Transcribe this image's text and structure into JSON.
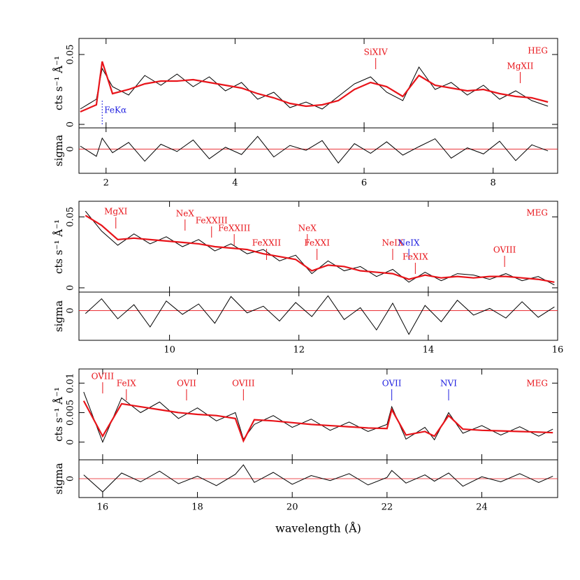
{
  "chart_data": [
    {
      "type": "line",
      "panel_label": "HEG",
      "ylabel": "cts s⁻¹ Å⁻¹",
      "xlim": [
        1.58,
        9.0
      ],
      "xticks": [
        2,
        4,
        6,
        8
      ],
      "ylim": [
        -0.0025,
        0.0615
      ],
      "yticks": [
        0,
        0.05
      ],
      "x": [
        1.6,
        1.85,
        1.94,
        2.1,
        2.35,
        2.6,
        2.85,
        3.1,
        3.35,
        3.6,
        3.85,
        4.1,
        4.35,
        4.6,
        4.85,
        5.1,
        5.35,
        5.6,
        5.85,
        6.1,
        6.35,
        6.6,
        6.85,
        7.1,
        7.35,
        7.6,
        7.85,
        8.1,
        8.35,
        8.6,
        8.85
      ],
      "series": [
        {
          "color": "#000000",
          "values": [
            0.011,
            0.018,
            0.04,
            0.027,
            0.021,
            0.035,
            0.028,
            0.036,
            0.027,
            0.034,
            0.024,
            0.03,
            0.018,
            0.023,
            0.012,
            0.016,
            0.011,
            0.02,
            0.029,
            0.034,
            0.023,
            0.017,
            0.041,
            0.025,
            0.03,
            0.021,
            0.028,
            0.018,
            0.024,
            0.017,
            0.013
          ]
        },
        {
          "color": "#e8141a",
          "values": [
            0.009,
            0.014,
            0.045,
            0.022,
            0.025,
            0.029,
            0.031,
            0.031,
            0.032,
            0.03,
            0.028,
            0.026,
            0.022,
            0.019,
            0.015,
            0.013,
            0.014,
            0.017,
            0.025,
            0.03,
            0.027,
            0.02,
            0.035,
            0.028,
            0.026,
            0.024,
            0.025,
            0.022,
            0.02,
            0.019,
            0.016
          ]
        }
      ],
      "annotations": [
        {
          "label": "SiXIV",
          "x": 6.18,
          "color": "#e8141a"
        },
        {
          "label": "MgXII",
          "x": 8.42,
          "color": "#e8141a"
        },
        {
          "label": "FeKα",
          "x": 1.94,
          "color": "#2020e0"
        }
      ],
      "residuals": {
        "ylabel": "sigma",
        "ylim": [
          -4,
          3.5
        ],
        "yticks": [
          0
        ],
        "values": [
          0.5,
          -1.2,
          1.8,
          -0.6,
          1.1,
          -2.0,
          0.8,
          -0.4,
          1.5,
          -1.6,
          0.3,
          -0.9,
          2.1,
          -1.3,
          0.6,
          -0.2,
          1.4,
          -2.3,
          0.9,
          -0.7,
          1.2,
          -1.0,
          0.4,
          1.7,
          -1.5,
          0.2,
          -0.8,
          1.3,
          -1.9,
          0.7,
          -0.3
        ]
      }
    },
    {
      "type": "line",
      "panel_label": "MEG",
      "ylabel": "cts s⁻¹ Å⁻¹",
      "xlim": [
        8.6,
        16
      ],
      "xticks": [
        10,
        12,
        14,
        16
      ],
      "ylim": [
        -0.003,
        0.061
      ],
      "yticks": [
        0,
        0.05
      ],
      "x": [
        8.7,
        8.95,
        9.2,
        9.45,
        9.7,
        9.95,
        10.2,
        10.45,
        10.7,
        10.95,
        11.2,
        11.45,
        11.7,
        11.95,
        12.2,
        12.45,
        12.7,
        12.95,
        13.2,
        13.45,
        13.7,
        13.95,
        14.2,
        14.45,
        14.7,
        14.95,
        15.2,
        15.45,
        15.7,
        15.95
      ],
      "series": [
        {
          "color": "#000000",
          "values": [
            0.054,
            0.04,
            0.03,
            0.038,
            0.031,
            0.036,
            0.029,
            0.034,
            0.026,
            0.031,
            0.024,
            0.027,
            0.019,
            0.023,
            0.01,
            0.019,
            0.012,
            0.015,
            0.008,
            0.013,
            0.004,
            0.011,
            0.005,
            0.01,
            0.009,
            0.006,
            0.01,
            0.005,
            0.008,
            0.002
          ]
        },
        {
          "color": "#e8141a",
          "values": [
            0.051,
            0.044,
            0.034,
            0.035,
            0.034,
            0.033,
            0.032,
            0.031,
            0.029,
            0.028,
            0.027,
            0.024,
            0.022,
            0.02,
            0.012,
            0.016,
            0.015,
            0.012,
            0.011,
            0.01,
            0.006,
            0.009,
            0.007,
            0.008,
            0.007,
            0.008,
            0.008,
            0.007,
            0.006,
            0.004
          ]
        }
      ],
      "annotations": [
        {
          "label": "MgXI",
          "x": 9.17,
          "color": "#e8141a"
        },
        {
          "label": "NeX",
          "x": 10.24,
          "color": "#e8141a"
        },
        {
          "label": "FeXXIII",
          "x": 10.65,
          "color": "#e8141a"
        },
        {
          "label": "FeXXIII",
          "x": 11.0,
          "color": "#e8141a"
        },
        {
          "label": "FeXXII",
          "x": 11.5,
          "color": "#e8141a"
        },
        {
          "label": "NeX",
          "x": 12.13,
          "color": "#e8141a"
        },
        {
          "label": "FeXXI",
          "x": 12.28,
          "color": "#e8141a"
        },
        {
          "label": "NeIX",
          "x": 13.45,
          "color": "#e8141a"
        },
        {
          "label": "NeIX",
          "x": 13.7,
          "color": "#2020e0"
        },
        {
          "label": "FeXIX",
          "x": 13.8,
          "color": "#e8141a"
        },
        {
          "label": "OVIII",
          "x": 15.18,
          "color": "#e8141a"
        }
      ],
      "residuals": {
        "ylabel": "sigma",
        "ylim": [
          -4,
          2.5
        ],
        "yticks": [
          0
        ],
        "values": [
          -0.4,
          1.6,
          -1.1,
          0.8,
          -2.2,
          1.3,
          -0.5,
          0.9,
          -1.7,
          1.9,
          -0.3,
          0.6,
          -1.4,
          1.1,
          -0.8,
          2.0,
          -1.2,
          0.4,
          -2.6,
          1.0,
          -3.2,
          0.7,
          -1.5,
          1.4,
          -0.6,
          0.3,
          -1.0,
          1.2,
          -0.9,
          0.5
        ]
      }
    },
    {
      "type": "line",
      "panel_label": "MEG",
      "ylabel": "cts s⁻¹ Å⁻¹",
      "x_label": "wavelength (Å)",
      "xlim": [
        15.5,
        25.6
      ],
      "xticks": [
        16,
        18,
        20,
        22,
        24
      ],
      "ylim": [
        -0.003,
        0.0124
      ],
      "yticks": [
        0,
        0.005,
        0.01
      ],
      "x": [
        15.6,
        16.0,
        16.4,
        16.8,
        17.2,
        17.6,
        18.0,
        18.4,
        18.8,
        18.97,
        19.2,
        19.6,
        20.0,
        20.4,
        20.8,
        21.2,
        21.6,
        22.0,
        22.1,
        22.4,
        22.8,
        23.0,
        23.3,
        23.6,
        24.0,
        24.4,
        24.8,
        25.2,
        25.5
      ],
      "series": [
        {
          "color": "#000000",
          "values": [
            0.0085,
            0.0,
            0.0075,
            0.005,
            0.0068,
            0.004,
            0.0058,
            0.0036,
            0.005,
            0.0005,
            0.003,
            0.0045,
            0.0025,
            0.0039,
            0.002,
            0.0034,
            0.0018,
            0.003,
            0.006,
            0.0005,
            0.0025,
            0.0004,
            0.005,
            0.0015,
            0.0028,
            0.0012,
            0.0026,
            0.001,
            0.0022
          ]
        },
        {
          "color": "#e8141a",
          "values": [
            0.007,
            0.001,
            0.0065,
            0.006,
            0.0055,
            0.005,
            0.0047,
            0.0045,
            0.004,
            0.0002,
            0.0038,
            0.0036,
            0.0033,
            0.003,
            0.0028,
            0.0026,
            0.0024,
            0.0023,
            0.0055,
            0.0012,
            0.0018,
            0.001,
            0.0045,
            0.0022,
            0.002,
            0.0019,
            0.0018,
            0.0017,
            0.0016
          ]
        }
      ],
      "annotations": [
        {
          "label": "OVIII",
          "x": 16.0,
          "color": "#e8141a"
        },
        {
          "label": "FeIX",
          "x": 16.5,
          "color": "#e8141a"
        },
        {
          "label": "OVII",
          "x": 17.77,
          "color": "#e8141a"
        },
        {
          "label": "OVIII",
          "x": 18.97,
          "color": "#e8141a"
        },
        {
          "label": "OVII",
          "x": 22.1,
          "color": "#2020e0"
        },
        {
          "label": "NVI",
          "x": 23.3,
          "color": "#2020e0"
        }
      ],
      "residuals": {
        "ylabel": "sigma",
        "ylim": [
          -3,
          3
        ],
        "yticks": [
          0
        ],
        "values": [
          0.6,
          -2.1,
          0.9,
          -0.5,
          1.2,
          -0.8,
          0.4,
          -1.1,
          0.7,
          2.2,
          -0.6,
          1.0,
          -0.9,
          0.5,
          -0.3,
          0.8,
          -1.0,
          0.2,
          1.3,
          -0.7,
          0.6,
          -0.4,
          0.9,
          -1.2,
          0.3,
          -0.5,
          0.8,
          -0.6,
          0.4
        ]
      }
    }
  ]
}
